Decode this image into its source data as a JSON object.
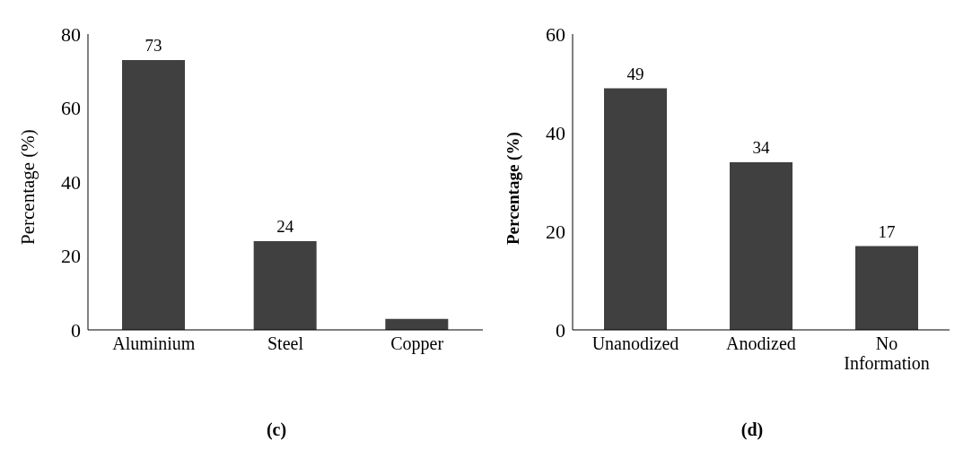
{
  "chart_data": [
    {
      "type": "bar",
      "categories": [
        "Aluminium",
        "Steel",
        "Copper"
      ],
      "values": [
        73,
        24,
        3
      ],
      "value_labels": [
        "73",
        "24",
        null
      ],
      "color": "#404040",
      "ylabel": "Percentage (%)",
      "ylim": [
        0,
        80
      ],
      "yticks": [
        0,
        20,
        40,
        60,
        80
      ],
      "grid": false,
      "annotations": [
        "(c)"
      ]
    },
    {
      "type": "bar",
      "categories": [
        "Unanodized",
        "Anodized",
        "No Information"
      ],
      "values": [
        49,
        34,
        17
      ],
      "data_labels": true,
      "color": "#404040",
      "ylabel": "Percentage (%)",
      "ylim": [
        0,
        60
      ],
      "yticks": [
        0,
        20,
        40,
        60
      ],
      "grid": false,
      "annotations": [
        "(d)"
      ]
    }
  ]
}
